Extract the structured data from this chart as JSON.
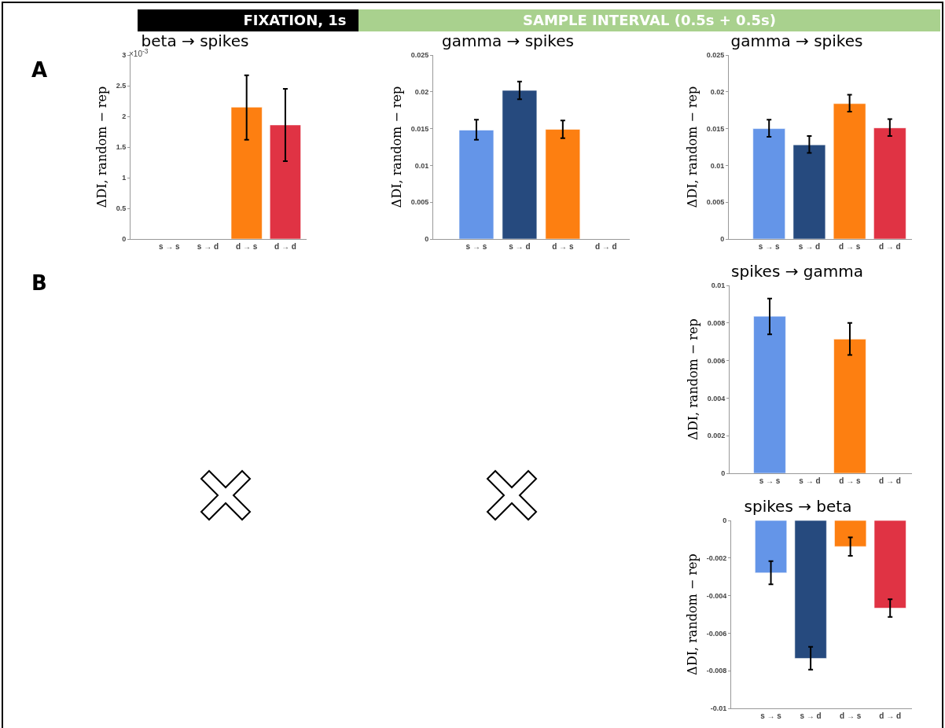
{
  "chart_data": [
    {
      "type": "bar",
      "title": "beta → spikes",
      "ylabel": "ΔDI, random − rep",
      "categories": [
        "s → s",
        "s → d",
        "d → s",
        "d → d"
      ],
      "values": [
        null,
        null,
        2.15,
        1.86
      ],
      "colors": [
        null,
        null,
        "#fd7f11",
        "#e03344"
      ],
      "errors": [
        null,
        null,
        [
          1.62,
          2.67
        ],
        [
          1.27,
          2.45
        ]
      ],
      "ylim": [
        0,
        3
      ],
      "yticks": [
        0,
        0.5,
        1,
        1.5,
        2,
        2.5,
        3
      ],
      "grid": false,
      "annotations": [
        "FIXATION, 1s",
        "A",
        "×10$^{-3}$"
      ]
    },
    {
      "type": "bar",
      "title": "gamma → spikes",
      "ylabel": "ΔDI, random − rep",
      "categories": [
        "s → s",
        "s → d",
        "d → s",
        "d → d"
      ],
      "values": [
        0.0148,
        0.0202,
        0.0149,
        null
      ],
      "colors": [
        "#6495e8",
        "#264a7e",
        "#fd7f11",
        null
      ],
      "errors": [
        [
          0.0135,
          0.0162
        ],
        [
          0.019,
          0.0214
        ],
        [
          0.0137,
          0.0161
        ],
        null
      ],
      "ylim": [
        0,
        0.025
      ],
      "yticks": [
        0,
        0.005,
        0.01,
        0.015,
        0.02,
        0.025
      ],
      "grid": false,
      "annotations": [
        "SAMPLE INTERVAL (0.5s + 0.5s)"
      ]
    },
    {
      "type": "bar",
      "title": "gamma → spikes",
      "ylabel": "ΔDI, random − rep",
      "categories": [
        "s → s",
        "s → d",
        "d → s",
        "d → d"
      ],
      "values": [
        0.015,
        0.0128,
        0.0184,
        0.0151
      ],
      "colors": [
        "#6495e8",
        "#264a7e",
        "#fd7f11",
        "#e03344"
      ],
      "errors": [
        [
          0.0139,
          0.0162
        ],
        [
          0.0117,
          0.014
        ],
        [
          0.0173,
          0.0196
        ],
        [
          0.014,
          0.0163
        ]
      ],
      "ylim": [
        0,
        0.025
      ],
      "yticks": [
        0,
        0.005,
        0.01,
        0.015,
        0.02,
        0.025
      ],
      "grid": false
    },
    {
      "type": "bar",
      "title": "spikes → gamma",
      "ylabel": "ΔDI, random − rep",
      "categories": [
        "s → s",
        "s → d",
        "d → s",
        "d → d"
      ],
      "values": [
        0.00836,
        null,
        0.00714,
        null
      ],
      "colors": [
        "#6495e8",
        null,
        "#fd7f11",
        null
      ],
      "errors": [
        [
          0.0074,
          0.0093
        ],
        null,
        [
          0.0063,
          0.008
        ],
        null
      ],
      "ylim": [
        0,
        0.01
      ],
      "yticks": [
        0,
        0.002,
        0.004,
        0.006,
        0.008,
        0.01
      ],
      "grid": false,
      "annotations": [
        "B"
      ]
    },
    {
      "type": "bar",
      "title": "spikes → beta",
      "ylabel": "ΔDI, random − rep",
      "categories": [
        "s → s",
        "s → d",
        "d → s",
        "d → d"
      ],
      "values": [
        -0.00279,
        -0.00734,
        -0.00139,
        -0.00467
      ],
      "colors": [
        "#6495e8",
        "#264a7e",
        "#fd7f11",
        "#e03344"
      ],
      "errors": [
        [
          -0.0034,
          -0.00217
        ],
        [
          -0.00794,
          -0.00673
        ],
        [
          -0.00188,
          -0.0009
        ],
        [
          -0.00514,
          -0.00419
        ]
      ],
      "ylim": [
        -0.01,
        0
      ],
      "yticks": [
        -0.01,
        -0.008,
        -0.006,
        -0.004,
        -0.002,
        0
      ],
      "grid": false
    }
  ]
}
